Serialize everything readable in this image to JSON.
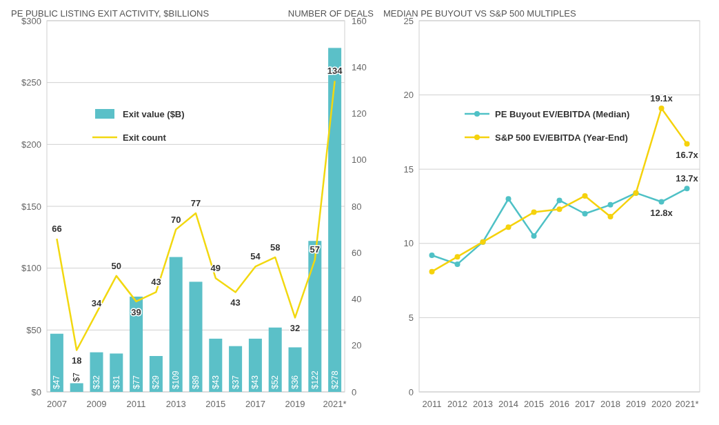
{
  "chart_data": [
    {
      "type": "bar",
      "title": "PE PUBLIC LISTING EXIT ACTIVITY, $BILLIONS",
      "y2label": "NUMBER OF DEALS",
      "categories": [
        "2007",
        null,
        "2009",
        null,
        "2011",
        null,
        "2013",
        null,
        "2015",
        null,
        "2017",
        null,
        "2019",
        null,
        "2021*"
      ],
      "series": [
        {
          "name": "Exit value ($B)",
          "color": "#5bc0c8",
          "values": [
            47,
            7,
            32,
            31,
            77,
            29,
            109,
            89,
            43,
            37,
            43,
            52,
            36,
            122,
            278
          ],
          "value_labels": [
            "$47",
            "$7",
            "$32",
            "$31",
            "$77",
            "$29",
            "$109",
            "$89",
            "$43",
            "$37",
            "$43",
            "$52",
            "$36",
            "$122",
            "$278"
          ]
        },
        {
          "name": "Exit count",
          "type": "line",
          "axis": "y2",
          "color": "#f2d810",
          "values": [
            66,
            18,
            34,
            50,
            39,
            43,
            70,
            77,
            49,
            43,
            54,
            58,
            32,
            57,
            134
          ],
          "value_labels": [
            "66",
            "18",
            "34",
            "50",
            "39",
            "43",
            "70",
            "77",
            "49",
            "43",
            "54",
            "58",
            "32",
            "57",
            "134"
          ]
        }
      ],
      "ylim": [
        0,
        300
      ],
      "yticks": [
        {
          "value": 0,
          "label": "$0"
        },
        {
          "value": 50,
          "label": "$50"
        },
        {
          "value": 100,
          "label": "$100"
        },
        {
          "value": 150,
          "label": "$150"
        },
        {
          "value": 200,
          "label": "$200"
        },
        {
          "value": 250,
          "label": "$250"
        },
        {
          "value": 300,
          "label": "$300"
        }
      ],
      "y2lim": [
        0,
        160
      ],
      "y2ticks": [
        0,
        20,
        40,
        60,
        80,
        100,
        120,
        140,
        160
      ],
      "grid": "y",
      "legend": "top left"
    },
    {
      "type": "line",
      "title": "MEDIAN PE BUYOUT VS S&P 500 MULTIPLES",
      "categories": [
        "2011",
        "2012",
        "2013",
        "2014",
        "2015",
        "2016",
        "2017",
        "2018",
        "2019",
        "2020",
        "2021*"
      ],
      "series": [
        {
          "name": "PE Buyout EV/EBITDA (Median)",
          "color": "#4fc1c6",
          "values": [
            9.2,
            8.6,
            10.1,
            13.0,
            10.5,
            12.9,
            12.0,
            12.6,
            13.4,
            12.8,
            13.7
          ],
          "value_labels": [
            null,
            null,
            null,
            null,
            null,
            null,
            null,
            null,
            null,
            "12.8x",
            "13.7x"
          ]
        },
        {
          "name": "S&P 500 EV/EBITDA (Year-End)",
          "color": "#f5d20c",
          "values": [
            8.1,
            9.1,
            10.1,
            11.1,
            12.1,
            12.3,
            13.2,
            11.8,
            13.4,
            19.1,
            16.7
          ],
          "value_labels": [
            null,
            null,
            null,
            null,
            null,
            null,
            null,
            null,
            null,
            "19.1x",
            "16.7x"
          ]
        }
      ],
      "ylim": [
        0,
        25
      ],
      "yticks": [
        0,
        5,
        10,
        15,
        20,
        25
      ],
      "grid": "y",
      "legend": "top left",
      "marker": "circle"
    }
  ]
}
